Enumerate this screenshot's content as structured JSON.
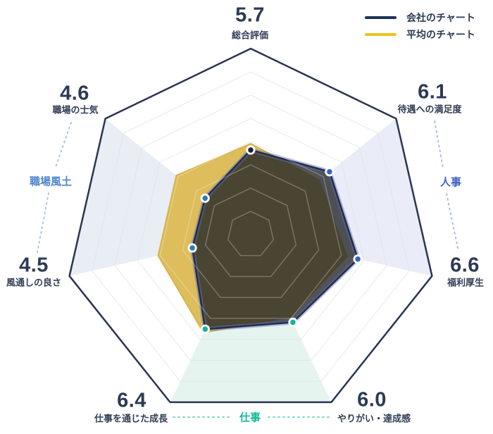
{
  "chart_data": {
    "type": "radar",
    "axis_count": 7,
    "axes": [
      {
        "label": "総合評価",
        "value": "5.7"
      },
      {
        "label": "待遇への満足度",
        "value": "6.1"
      },
      {
        "label": "福利厚生",
        "value": "6.6"
      },
      {
        "label": "やりがい・達成感",
        "value": "6.0"
      },
      {
        "label": "仕事を通じた成長",
        "value": "6.4"
      },
      {
        "label": "風通しの良さ",
        "value": "4.5"
      },
      {
        "label": "職場の士気",
        "value": "4.6"
      }
    ],
    "series": [
      {
        "name": "会社のチャート",
        "values": [
          5.7,
          6.1,
          6.6,
          6.0,
          6.4,
          4.5,
          4.6
        ],
        "r_frac": [
          0.455,
          0.542,
          0.591,
          0.523,
          0.564,
          0.322,
          0.314
        ],
        "legend_color": "#1d3357",
        "fill_color": "rgba(32,34,38,0.78)",
        "line_color": "#232e4c",
        "glow_color": "rgba(96,114,182,0.45)"
      },
      {
        "name": "平均のチャート",
        "values_estimated": [
          5.8,
          5.5,
          6.2,
          5.8,
          6.9,
          6.0,
          6.0
        ],
        "r_frac": [
          0.489,
          0.47,
          0.53,
          0.49,
          0.585,
          0.511,
          0.511
        ],
        "legend_color": "#e9c51e",
        "fill_color": "#dcba55",
        "line_color": "#d8b44e"
      }
    ],
    "point_colors": [
      "#1b2545",
      "#3d5ec6",
      "#3d5ec6",
      "#10b39c",
      "#10b39c",
      "#2f7dad",
      "#2f7dad"
    ],
    "sector_fills": [
      "#ffffff",
      "#eaedf7",
      "#ffffff",
      "#e6f4f0",
      "#ffffff",
      "#e9eef5",
      "#ffffff"
    ],
    "groups": [
      {
        "label": "職場風土",
        "color": "#4d87cd",
        "axes": [
          "風通しの良さ",
          "職場の士気"
        ]
      },
      {
        "label": "人事",
        "color": "#4161c4",
        "axes": [
          "待遇への満足度",
          "福利厚生"
        ]
      },
      {
        "label": "仕事",
        "color": "#14b89a",
        "axes": [
          "やりがい・達成感",
          "仕事を通じた成長"
        ]
      }
    ],
    "grid": {
      "rings": 8,
      "outer_border_color": "#2a3554",
      "ring_color": "#c9cfda"
    },
    "legend_position": "top-right"
  }
}
